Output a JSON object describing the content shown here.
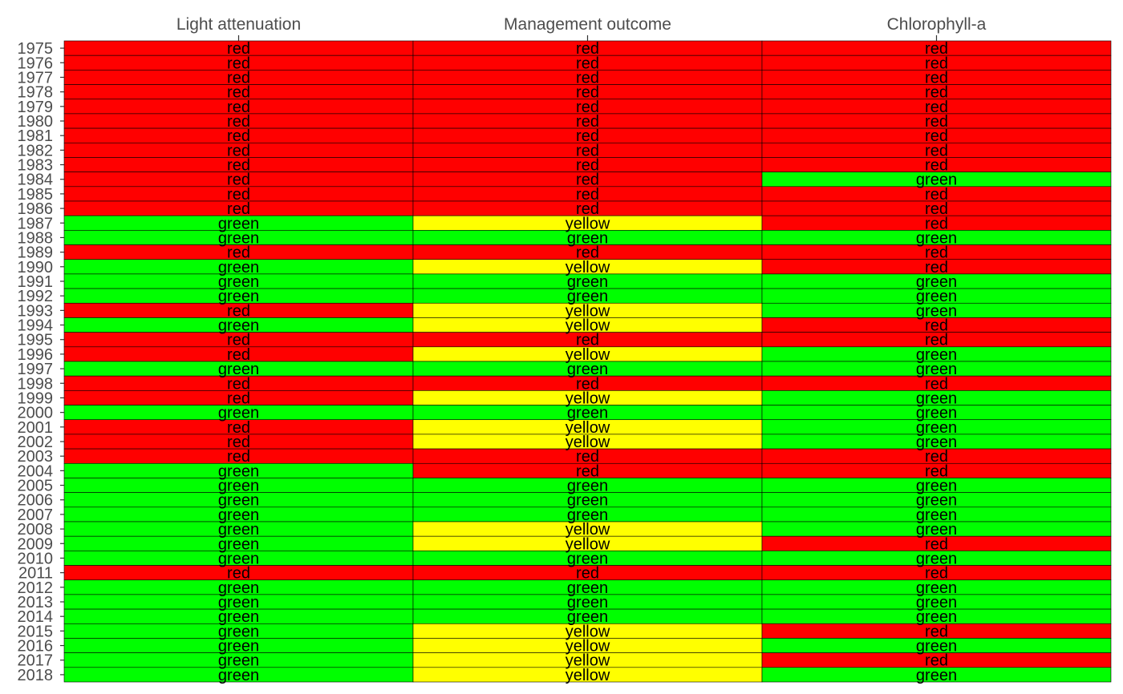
{
  "chart_data": {
    "type": "heatmap",
    "columns": [
      "Light attenuation",
      "Management outcome",
      "Chlorophyll-a"
    ],
    "rows": [
      {
        "year": "1975",
        "values": [
          "red",
          "red",
          "red"
        ]
      },
      {
        "year": "1976",
        "values": [
          "red",
          "red",
          "red"
        ]
      },
      {
        "year": "1977",
        "values": [
          "red",
          "red",
          "red"
        ]
      },
      {
        "year": "1978",
        "values": [
          "red",
          "red",
          "red"
        ]
      },
      {
        "year": "1979",
        "values": [
          "red",
          "red",
          "red"
        ]
      },
      {
        "year": "1980",
        "values": [
          "red",
          "red",
          "red"
        ]
      },
      {
        "year": "1981",
        "values": [
          "red",
          "red",
          "red"
        ]
      },
      {
        "year": "1982",
        "values": [
          "red",
          "red",
          "red"
        ]
      },
      {
        "year": "1983",
        "values": [
          "red",
          "red",
          "red"
        ]
      },
      {
        "year": "1984",
        "values": [
          "red",
          "red",
          "green"
        ]
      },
      {
        "year": "1985",
        "values": [
          "red",
          "red",
          "red"
        ]
      },
      {
        "year": "1986",
        "values": [
          "red",
          "red",
          "red"
        ]
      },
      {
        "year": "1987",
        "values": [
          "green",
          "yellow",
          "red"
        ]
      },
      {
        "year": "1988",
        "values": [
          "green",
          "green",
          "green"
        ]
      },
      {
        "year": "1989",
        "values": [
          "red",
          "red",
          "red"
        ]
      },
      {
        "year": "1990",
        "values": [
          "green",
          "yellow",
          "red"
        ]
      },
      {
        "year": "1991",
        "values": [
          "green",
          "green",
          "green"
        ]
      },
      {
        "year": "1992",
        "values": [
          "green",
          "green",
          "green"
        ]
      },
      {
        "year": "1993",
        "values": [
          "red",
          "yellow",
          "green"
        ]
      },
      {
        "year": "1994",
        "values": [
          "green",
          "yellow",
          "red"
        ]
      },
      {
        "year": "1995",
        "values": [
          "red",
          "red",
          "red"
        ]
      },
      {
        "year": "1996",
        "values": [
          "red",
          "yellow",
          "green"
        ]
      },
      {
        "year": "1997",
        "values": [
          "green",
          "green",
          "green"
        ]
      },
      {
        "year": "1998",
        "values": [
          "red",
          "red",
          "red"
        ]
      },
      {
        "year": "1999",
        "values": [
          "red",
          "yellow",
          "green"
        ]
      },
      {
        "year": "2000",
        "values": [
          "green",
          "green",
          "green"
        ]
      },
      {
        "year": "2001",
        "values": [
          "red",
          "yellow",
          "green"
        ]
      },
      {
        "year": "2002",
        "values": [
          "red",
          "yellow",
          "green"
        ]
      },
      {
        "year": "2003",
        "values": [
          "red",
          "red",
          "red"
        ]
      },
      {
        "year": "2004",
        "values": [
          "green",
          "red",
          "red"
        ]
      },
      {
        "year": "2005",
        "values": [
          "green",
          "green",
          "green"
        ]
      },
      {
        "year": "2006",
        "values": [
          "green",
          "green",
          "green"
        ]
      },
      {
        "year": "2007",
        "values": [
          "green",
          "green",
          "green"
        ]
      },
      {
        "year": "2008",
        "values": [
          "green",
          "yellow",
          "green"
        ]
      },
      {
        "year": "2009",
        "values": [
          "green",
          "yellow",
          "red"
        ]
      },
      {
        "year": "2010",
        "values": [
          "green",
          "green",
          "green"
        ]
      },
      {
        "year": "2011",
        "values": [
          "red",
          "red",
          "red"
        ]
      },
      {
        "year": "2012",
        "values": [
          "green",
          "green",
          "green"
        ]
      },
      {
        "year": "2013",
        "values": [
          "green",
          "green",
          "green"
        ]
      },
      {
        "year": "2014",
        "values": [
          "green",
          "green",
          "green"
        ]
      },
      {
        "year": "2015",
        "values": [
          "green",
          "yellow",
          "red"
        ]
      },
      {
        "year": "2016",
        "values": [
          "green",
          "yellow",
          "green"
        ]
      },
      {
        "year": "2017",
        "values": [
          "green",
          "yellow",
          "red"
        ]
      },
      {
        "year": "2018",
        "values": [
          "green",
          "yellow",
          "green"
        ]
      }
    ],
    "colors": {
      "red": "#ff0000",
      "yellow": "#ffff00",
      "green": "#00ff00"
    },
    "x_axis_position": "top",
    "grid": false,
    "legend": "none"
  }
}
